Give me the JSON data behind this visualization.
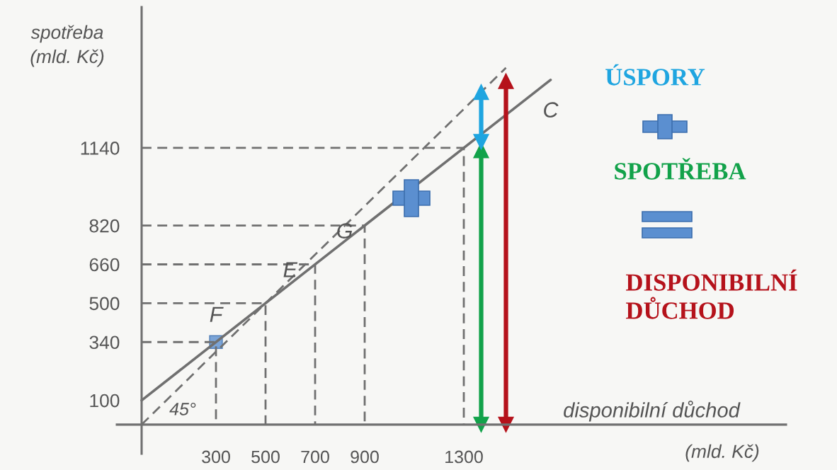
{
  "chart_data": {
    "type": "line",
    "xlabel": "disponibilní důchod",
    "ylabel": "spotřeba\n(mld. Kč)",
    "xlim": [
      -100,
      2600
    ],
    "ylim": [
      -120,
      1720
    ],
    "xticks": [
      300,
      500,
      700,
      900,
      1300
    ],
    "yticks": [
      100,
      340,
      500,
      660,
      820,
      1140
    ],
    "grid": false,
    "series": [
      {
        "name": "C",
        "color": "#707070",
        "line_style": "solid",
        "x": [
          0,
          1650
        ],
        "values": [
          100,
          1420
        ]
      },
      {
        "color": "#707070",
        "line_style": "dashed",
        "x": [
          0,
          1470
        ],
        "values": [
          0,
          1470
        ]
      },
      {
        "color": "#707070",
        "line_style": "dashed",
        "x": [
          0,
          300,
          300
        ],
        "values": [
          340,
          340,
          0
        ]
      },
      {
        "color": "#707070",
        "line_style": "dashed",
        "x": [
          0,
          500,
          500
        ],
        "values": [
          500,
          500,
          0
        ]
      },
      {
        "color": "#707070",
        "line_style": "dashed",
        "x": [
          0,
          700,
          700
        ],
        "values": [
          660,
          660,
          0
        ]
      },
      {
        "color": "#707070",
        "line_style": "dashed",
        "x": [
          0,
          900,
          900
        ],
        "values": [
          820,
          820,
          0
        ]
      },
      {
        "color": "#707070",
        "line_style": "dashed",
        "x": [
          0,
          1300,
          1300
        ],
        "values": [
          1140,
          1140,
          0
        ]
      },
      {
        "color": "#12a24a",
        "line_style": "solid",
        "marker": "triangle",
        "x": [
          1370,
          1370
        ],
        "values": [
          0,
          1130
        ]
      },
      {
        "color": "#1fa5e0",
        "line_style": "solid",
        "marker": "triangle",
        "x": [
          1370,
          1370
        ],
        "values": [
          1165,
          1370
        ]
      },
      {
        "type": "scatter",
        "color": "#5b8fd0",
        "marker": "square",
        "x": [
          300
        ],
        "values": [
          340
        ]
      },
      {
        "color": "#b5121b",
        "line_style": "solid",
        "marker": "triangle",
        "x": [
          1470,
          1470
        ],
        "values": [
          0,
          1415
        ]
      }
    ],
    "annotations": [
      {
        "text": "F",
        "x": 300,
        "y": 340
      },
      {
        "text": "E",
        "x": 500,
        "y": 500
      },
      {
        "text": "G",
        "x": 700,
        "y": 660
      },
      "45°",
      "(mld. Kč)",
      "ÚSPORY",
      "SPOTŘEBA",
      "DISPONIBILNÍ\nDŮCHOD"
    ]
  }
}
